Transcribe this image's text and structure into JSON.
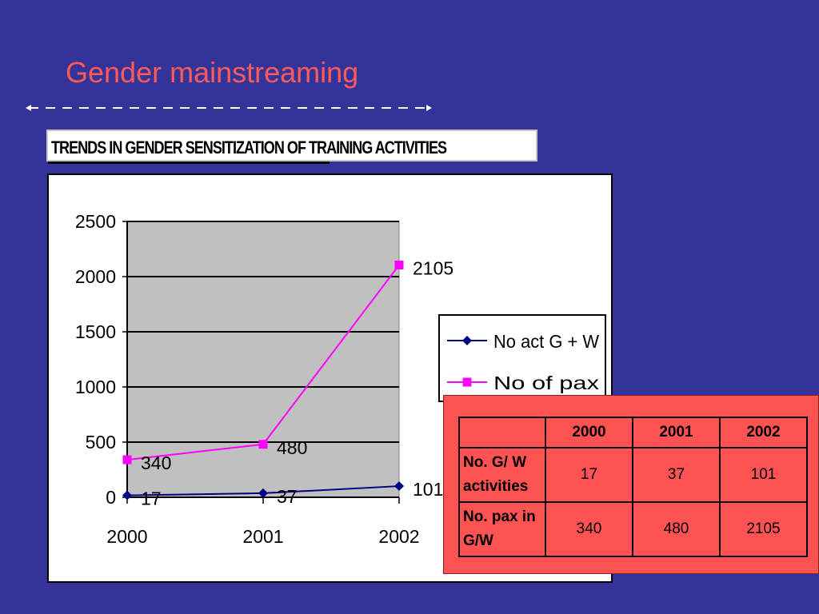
{
  "slide": {
    "title": "Gender mainstreaming",
    "banner": "TRENDS IN GENDER SENSITIZATION OF TRAINING ACTIVITIES",
    "colors": {
      "background": "#333399",
      "title": "#ff5a5a",
      "table_panel": "#ff5252"
    }
  },
  "chart_data": {
    "type": "line",
    "categories": [
      "2000",
      "2001",
      "2002"
    ],
    "series": [
      {
        "name": "No act G + W",
        "values": [
          17,
          37,
          101
        ],
        "color": "#000080",
        "marker": "diamond"
      },
      {
        "name": "No of pax",
        "values": [
          340,
          480,
          2105
        ],
        "color": "#ff00ff",
        "marker": "square"
      }
    ],
    "ylim": [
      0,
      2500
    ],
    "yticks": [
      0,
      500,
      1000,
      1500,
      2000,
      2500
    ],
    "grid": true,
    "plot_background": "#c0c0c0",
    "legend": "right",
    "data_labels": true
  },
  "table": {
    "headers": [
      "",
      "2000",
      "2001",
      "2002"
    ],
    "rows": [
      {
        "label": "No. G/ W activities",
        "values": [
          "17",
          "37",
          "101"
        ]
      },
      {
        "label": "No. pax in G/W",
        "values": [
          "340",
          "480",
          "2105"
        ]
      }
    ]
  }
}
